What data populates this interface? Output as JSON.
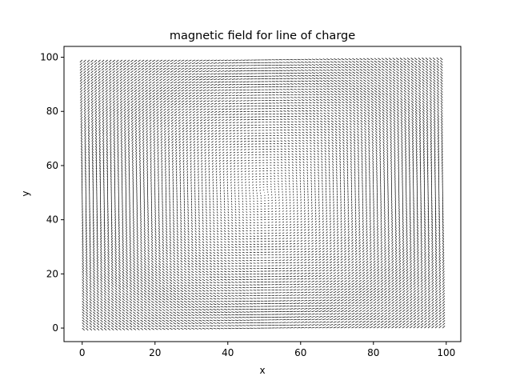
{
  "chart_data": {
    "type": "quiver",
    "title": "magnetic field for line of charge",
    "xlabel": "x",
    "ylabel": "y",
    "xlim": [
      -5,
      104
    ],
    "ylim": [
      -5,
      104
    ],
    "xticks": [
      0,
      20,
      40,
      60,
      80,
      100
    ],
    "yticks": [
      0,
      20,
      40,
      60,
      80,
      100
    ],
    "grid": false,
    "field": {
      "description_values": {
        "x_start": 0,
        "x_end": 99,
        "y_start": 0,
        "y_end": 99,
        "step": 1,
        "center": [
          50,
          50
        ],
        "direction": "counterclockwise circulation around center"
      }
    },
    "colors": {
      "arrows": "#000000",
      "axes": "#000000",
      "background": "#ffffff"
    }
  }
}
